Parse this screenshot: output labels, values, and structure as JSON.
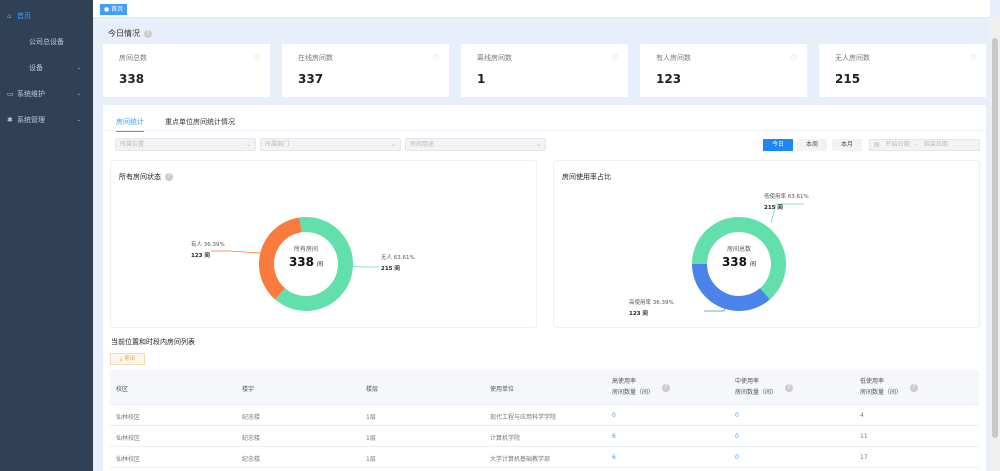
{
  "sidebar": {
    "items": [
      {
        "label": "首页",
        "icon": "home-icon"
      },
      {
        "label": "公司总设备"
      },
      {
        "label": "设备"
      },
      {
        "label": "系统维护",
        "icon": "monitor-icon"
      },
      {
        "label": "系统管理",
        "icon": "gear-icon"
      }
    ]
  },
  "topbar": {
    "tag": "首页"
  },
  "today": {
    "title": "今日情况",
    "cards": [
      {
        "label": "房间总数",
        "value": "338"
      },
      {
        "label": "在线房间数",
        "value": "337"
      },
      {
        "label": "离线房间数",
        "value": "1"
      },
      {
        "label": "有人房间数",
        "value": "123"
      },
      {
        "label": "无人房间数",
        "value": "215"
      }
    ]
  },
  "tabs": [
    {
      "label": "房间统计"
    },
    {
      "label": "重点单位房间统计情况"
    }
  ],
  "filters": {
    "location": "所属位置",
    "department": "所属部门",
    "usage": "房间用途"
  },
  "period": {
    "today": "今日",
    "week": "本周",
    "month": "本月",
    "start": "开始日期",
    "sep": "-",
    "end": "结束日期"
  },
  "colors": {
    "occupied": "#f97b3d",
    "empty": "#62dfaa",
    "high": "#4a84ea",
    "low": "#62dfaa",
    "accent": "#409eff"
  },
  "chart1": {
    "title": "所有房间状态",
    "center_label": "所有房间",
    "center_value": "338",
    "unit": "间",
    "slices": [
      {
        "name": "有人",
        "pct": "36.39%",
        "count": "123 间",
        "value": 123
      },
      {
        "name": "无人",
        "pct": "63.61%",
        "count": "215 间",
        "value": 215
      }
    ]
  },
  "chart2": {
    "title": "房间使用率占比",
    "center_label": "房间总数",
    "center_value": "338",
    "unit": "间",
    "slices": [
      {
        "name": "低使用率",
        "pct": "63.61%",
        "count": "215 间",
        "value": 215
      },
      {
        "name": "高使用率",
        "pct": "36.39%",
        "count": "123 间",
        "value": 123
      }
    ]
  },
  "table": {
    "title": "当前位置和时段内房间列表",
    "export": "导出",
    "headers": [
      "校区",
      "楼宇",
      "楼层",
      "使用单位",
      [
        "高使用率",
        "房间数量（间）"
      ],
      [
        "中使用率",
        "房间数量（间）"
      ],
      [
        "低使用率",
        "房间数量（间）"
      ]
    ],
    "rows": [
      [
        "仙林校区",
        "纪忠楼",
        "1层",
        "现代工程与应用科学学院",
        "0",
        "0",
        "4"
      ],
      [
        "仙林校区",
        "纪忠楼",
        "1层",
        "计算机学院",
        "6",
        "0",
        "11"
      ],
      [
        "仙林校区",
        "纪忠楼",
        "1层",
        "大学计算机基础教学部",
        "6",
        "0",
        "17"
      ]
    ]
  }
}
